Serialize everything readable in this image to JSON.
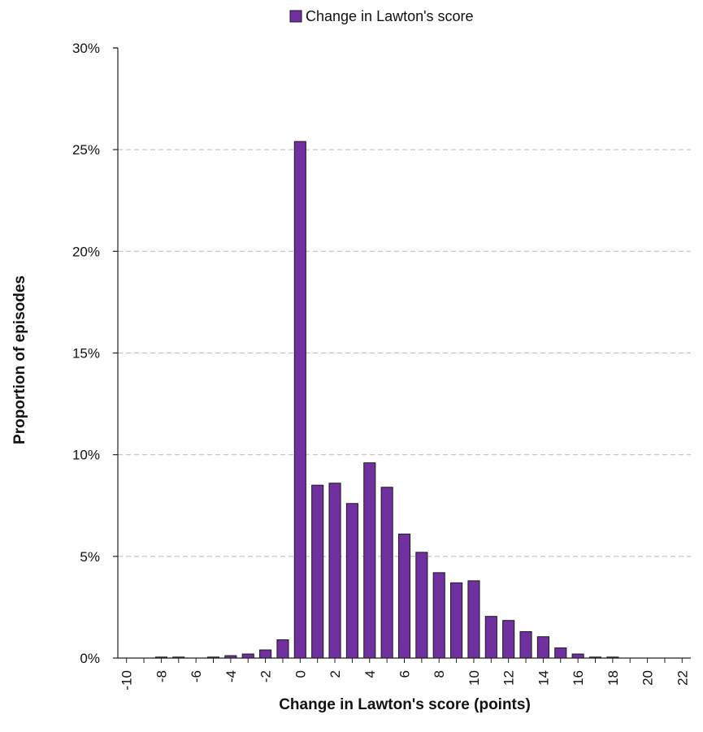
{
  "chart_data": {
    "type": "bar",
    "legend_position": "top-center",
    "grid": "horizontal-dashed",
    "bar_color": "#7030A0",
    "bar_edge_color": "#1a1a1a",
    "grid_color": "#c0c0c0",
    "series": [
      {
        "name": "Change in Lawton's score",
        "x": [
          -10,
          -9,
          -8,
          -7,
          -6,
          -5,
          -4,
          -3,
          -2,
          -1,
          0,
          1,
          2,
          3,
          4,
          5,
          6,
          7,
          8,
          9,
          10,
          11,
          12,
          13,
          14,
          15,
          16,
          17,
          18,
          19,
          20,
          21,
          22
        ],
        "values": [
          0,
          0,
          0.05,
          0.05,
          0,
          0.05,
          0.12,
          0.2,
          0.4,
          0.9,
          25.4,
          8.5,
          8.6,
          7.6,
          9.6,
          8.4,
          6.1,
          5.2,
          4.2,
          3.7,
          3.8,
          2.05,
          1.85,
          1.3,
          1.05,
          0.5,
          0.2,
          0.05,
          0.05,
          0,
          0,
          0,
          0
        ]
      }
    ],
    "xlabel": "Change in Lawton's score (points)",
    "ylabel": "Proportion of episodes",
    "xlim": [
      -10.5,
      22.5
    ],
    "ylim": [
      0,
      30
    ],
    "x_ticks": [
      "-10",
      "-8",
      "-6",
      "-4",
      "-2",
      "0",
      "2",
      "4",
      "6",
      "8",
      "10",
      "12",
      "14",
      "16",
      "18",
      "20",
      "22"
    ],
    "y_ticks": [
      "0%",
      "5%",
      "10%",
      "15%",
      "20%",
      "25%",
      "30%"
    ]
  }
}
